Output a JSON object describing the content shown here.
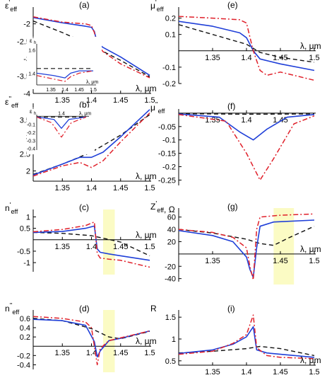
{
  "colors": {
    "blue": "#1f3fd8",
    "red": "#e0202a",
    "black": "#111111",
    "highlight": "#fbfbc4"
  },
  "chart_data": [
    {
      "id": "a",
      "panel_label": "(a)",
      "type": "line",
      "ylabel_main": "ε",
      "ylabel_sup": "'",
      "ylabel_sub": "eff",
      "xlabel": "λ, μm",
      "xlim": [
        1.3,
        1.5
      ],
      "ylim": [
        -4,
        -1.6
      ],
      "xaxis_at": -4,
      "yticks": [
        -2,
        -2.5,
        -3,
        -3.5,
        -4
      ],
      "xticks": [
        1.35,
        1.4,
        1.45,
        1.5
      ],
      "series": [
        {
          "color": "black",
          "dash": "dash",
          "x": [
            1.3,
            1.35,
            1.4,
            1.45,
            1.5
          ],
          "y": [
            -1.92,
            -2.25,
            -2.62,
            -3.05,
            -3.52
          ]
        },
        {
          "color": "blue",
          "dash": "solid",
          "x": [
            1.3,
            1.35,
            1.39,
            1.4,
            1.405,
            1.41,
            1.42,
            1.45,
            1.5
          ],
          "y": [
            -1.82,
            -1.97,
            -2.07,
            -2.1,
            -2.22,
            -2.55,
            -2.68,
            -2.95,
            -3.48
          ]
        },
        {
          "color": "red",
          "dash": "dashdot",
          "x": [
            1.3,
            1.35,
            1.39,
            1.4,
            1.405,
            1.41,
            1.42,
            1.45,
            1.5
          ],
          "y": [
            -1.8,
            -1.95,
            -2.0,
            -2.05,
            -2.25,
            -2.6,
            -2.8,
            -3.15,
            -3.55
          ]
        }
      ],
      "inset": {
        "ylabel_main": "ε",
        "ylabel_sup": "''",
        "ylabel_sub": "h",
        "xlabel": "λ, μm",
        "xlim": [
          1.3,
          1.5
        ],
        "ylim": [
          1.3,
          1.65
        ],
        "yticks": [
          1.6,
          1.4
        ],
        "xticks": [
          1.35,
          1.4,
          1.45,
          1.5
        ],
        "series": [
          {
            "color": "black",
            "dash": "dash",
            "x": [
              1.3,
              1.5
            ],
            "y": [
              1.44,
              1.44
            ]
          },
          {
            "color": "blue",
            "dash": "solid",
            "x": [
              1.3,
              1.36,
              1.4,
              1.42,
              1.45,
              1.5
            ],
            "y": [
              1.4,
              1.38,
              1.36,
              1.4,
              1.42,
              1.42
            ]
          },
          {
            "color": "red",
            "dash": "dashdot",
            "x": [
              1.3,
              1.36,
              1.4,
              1.42,
              1.45,
              1.5
            ],
            "y": [
              1.38,
              1.35,
              1.33,
              1.37,
              1.4,
              1.42
            ]
          }
        ]
      }
    },
    {
      "id": "e",
      "panel_label": "(e)",
      "type": "line",
      "ylabel_main": "μ",
      "ylabel_sup": "'",
      "ylabel_sub": "eff",
      "xlabel": "λ, μm",
      "xlim": [
        1.3,
        1.5
      ],
      "ylim": [
        -0.2,
        0.25
      ],
      "xaxis_at": 0,
      "yticks": [
        0.2,
        0.1,
        -0.1,
        -0.2
      ],
      "xticks": [
        1.35,
        1.4,
        1.45,
        1.5
      ],
      "series": [
        {
          "color": "black",
          "dash": "dash",
          "x": [
            1.3,
            1.35,
            1.4,
            1.42,
            1.45,
            1.5
          ],
          "y": [
            0.16,
            0.1,
            0.04,
            -0.01,
            -0.04,
            -0.07
          ]
        },
        {
          "color": "blue",
          "dash": "solid",
          "x": [
            1.3,
            1.35,
            1.39,
            1.4,
            1.41,
            1.42,
            1.45,
            1.5
          ],
          "y": [
            0.18,
            0.15,
            0.11,
            0.08,
            0.0,
            -0.05,
            -0.08,
            -0.12
          ]
        },
        {
          "color": "red",
          "dash": "dashdot",
          "x": [
            1.3,
            1.35,
            1.39,
            1.4,
            1.41,
            1.42,
            1.43,
            1.45,
            1.5
          ],
          "y": [
            0.21,
            0.2,
            0.19,
            0.17,
            0.0,
            -0.12,
            -0.15,
            -0.13,
            -0.18
          ]
        }
      ]
    },
    {
      "id": "b",
      "panel_label": "(b)",
      "type": "line",
      "ylabel_main": "ε",
      "ylabel_sup": "''",
      "ylabel_sub": "eff",
      "xlabel": "λ, μm",
      "xlim": [
        1.3,
        1.5
      ],
      "ylim": [
        1.7,
        3.9
      ],
      "xaxis_at": 1.7,
      "yticks": [
        3.5,
        3,
        2.5,
        2
      ],
      "xticks": [
        1.35,
        1.4,
        1.45,
        1.5
      ],
      "series": [
        {
          "color": "black",
          "dash": "dash",
          "x": [
            1.3,
            1.35,
            1.4,
            1.45,
            1.5
          ],
          "y": [
            1.9,
            2.2,
            2.55,
            3.05,
            3.65
          ]
        },
        {
          "color": "blue",
          "dash": "solid",
          "x": [
            1.3,
            1.35,
            1.38,
            1.4,
            1.42,
            1.45,
            1.5
          ],
          "y": [
            1.88,
            2.2,
            2.4,
            2.4,
            2.55,
            3.0,
            3.8
          ]
        },
        {
          "color": "red",
          "dash": "dashdot",
          "x": [
            1.3,
            1.35,
            1.38,
            1.4,
            1.42,
            1.45,
            1.5
          ],
          "y": [
            1.85,
            2.15,
            2.25,
            2.1,
            2.3,
            2.85,
            3.7
          ]
        }
      ],
      "inset": {
        "ylabel_main": "ε",
        "ylabel_sup": "''",
        "ylabel_sub": "h",
        "xlabel": "λ, μm",
        "xlim": [
          1.3,
          1.5
        ],
        "ylim": [
          -0.42,
          0.02
        ],
        "yticks": [
          -0.1,
          -0.2,
          -0.3,
          -0.4
        ],
        "xticks": [
          1.4
        ],
        "series": [
          {
            "color": "black",
            "dash": "dash",
            "x": [
              1.3,
              1.5
            ],
            "y": [
              -0.01,
              -0.01
            ]
          },
          {
            "color": "blue",
            "dash": "solid",
            "x": [
              1.3,
              1.37,
              1.4,
              1.43,
              1.5
            ],
            "y": [
              -0.01,
              -0.04,
              -0.15,
              -0.04,
              -0.01
            ]
          },
          {
            "color": "red",
            "dash": "dashdot",
            "x": [
              1.3,
              1.36,
              1.4,
              1.44,
              1.5
            ],
            "y": [
              -0.01,
              -0.08,
              -0.26,
              -0.08,
              -0.01
            ]
          }
        ]
      }
    },
    {
      "id": "f",
      "panel_label": "(f)",
      "type": "line",
      "ylabel_main": "μ",
      "ylabel_sup": "''",
      "ylabel_sub": "eff",
      "xlabel": "",
      "xlim": [
        1.3,
        1.5
      ],
      "ylim": [
        -0.27,
        0.005
      ],
      "xaxis_at": 0,
      "yticks": [
        -0.05,
        -0.1,
        -0.15,
        -0.2,
        -0.25
      ],
      "xticks": [
        1.35,
        1.4,
        1.45
      ],
      "series": [
        {
          "color": "black",
          "dash": "dash",
          "x": [
            1.3,
            1.4,
            1.5
          ],
          "y": [
            -0.002,
            -0.004,
            -0.003
          ]
        },
        {
          "color": "blue",
          "dash": "solid",
          "x": [
            1.3,
            1.36,
            1.39,
            1.41,
            1.43,
            1.46,
            1.5
          ],
          "y": [
            -0.003,
            -0.015,
            -0.07,
            -0.1,
            -0.06,
            -0.015,
            -0.005
          ]
        },
        {
          "color": "red",
          "dash": "dashdot",
          "x": [
            1.3,
            1.37,
            1.4,
            1.42,
            1.44,
            1.47,
            1.5
          ],
          "y": [
            -0.005,
            -0.03,
            -0.15,
            -0.25,
            -0.17,
            -0.04,
            -0.01
          ]
        }
      ]
    },
    {
      "id": "c",
      "panel_label": "(c)",
      "type": "line",
      "ylabel_main": "n",
      "ylabel_sup": "'",
      "ylabel_sub": "eff",
      "xlabel": "λ, μm",
      "xlim": [
        1.3,
        1.5
      ],
      "ylim": [
        -1.4,
        1.2
      ],
      "xaxis_at": 0,
      "yticks": [
        1,
        0.5,
        -0.5,
        -1
      ],
      "xticks": [
        1.35,
        1.4,
        1.45,
        1.5
      ],
      "highlight": [
        1.42,
        1.44
      ],
      "series": [
        {
          "color": "black",
          "dash": "dash",
          "x": [
            1.3,
            1.35,
            1.4,
            1.45,
            1.5
          ],
          "y": [
            0.32,
            0.28,
            0.18,
            -0.1,
            -0.7
          ]
        },
        {
          "color": "blue",
          "dash": "solid",
          "x": [
            1.3,
            1.35,
            1.39,
            1.405,
            1.41,
            1.415,
            1.43,
            1.45,
            1.5
          ],
          "y": [
            0.32,
            0.36,
            0.5,
            0.6,
            -0.4,
            -0.55,
            -0.62,
            -0.7,
            -0.9
          ]
        },
        {
          "color": "red",
          "dash": "dashdot",
          "x": [
            1.3,
            1.35,
            1.39,
            1.405,
            1.41,
            1.415,
            1.43,
            1.45,
            1.5
          ],
          "y": [
            0.35,
            0.45,
            0.62,
            0.78,
            -0.6,
            -0.8,
            -0.85,
            -0.9,
            -1.2
          ]
        }
      ]
    },
    {
      "id": "g",
      "panel_label": "(g)",
      "type": "line",
      "ylabel_main": "Z",
      "ylabel_sup": "'",
      "ylabel_sub": "eff",
      "ylabel_tail": ", Ω",
      "xlabel": "λ, μm",
      "xlim": [
        1.3,
        1.5
      ],
      "ylim": [
        -45,
        70
      ],
      "xaxis_at": 0,
      "yticks": [
        60,
        40,
        20,
        -20,
        -40
      ],
      "xticks": [
        1.35,
        1.45,
        1.5
      ],
      "highlight": [
        1.44,
        1.47
      ],
      "series": [
        {
          "color": "black",
          "dash": "dash",
          "x": [
            1.3,
            1.35,
            1.4,
            1.42,
            1.44,
            1.46,
            1.5
          ],
          "y": [
            40,
            34,
            24,
            17,
            14,
            25,
            45
          ]
        },
        {
          "color": "blue",
          "dash": "solid",
          "x": [
            1.3,
            1.35,
            1.38,
            1.4,
            1.405,
            1.41,
            1.415,
            1.42,
            1.44,
            1.5
          ],
          "y": [
            38,
            30,
            20,
            -5,
            -25,
            -38,
            10,
            45,
            52,
            55
          ]
        },
        {
          "color": "red",
          "dash": "dashdot",
          "x": [
            1.3,
            1.35,
            1.38,
            1.4,
            1.405,
            1.41,
            1.415,
            1.42,
            1.45,
            1.5
          ],
          "y": [
            40,
            35,
            27,
            10,
            -20,
            -42,
            40,
            60,
            63,
            65
          ]
        }
      ]
    },
    {
      "id": "d",
      "panel_label": "(d)",
      "type": "line",
      "ylabel_main": "n",
      "ylabel_sup": "''",
      "ylabel_sub": "eff",
      "xlabel": "λ, μm",
      "xlim": [
        1.3,
        1.5
      ],
      "ylim": [
        -0.5,
        0.72
      ],
      "xaxis_at": 0,
      "yticks": [
        0.6,
        0.4,
        0.2,
        -0.2,
        -0.4
      ],
      "xticks": [
        1.35,
        1.4,
        1.45,
        1.5
      ],
      "highlight": [
        1.42,
        1.44
      ],
      "series": [
        {
          "color": "black",
          "dash": "dash",
          "x": [
            1.3,
            1.35,
            1.4,
            1.43,
            1.45,
            1.5
          ],
          "y": [
            0.6,
            0.55,
            0.38,
            0.2,
            0.16,
            0.32
          ]
        },
        {
          "color": "blue",
          "dash": "solid",
          "x": [
            1.3,
            1.35,
            1.39,
            1.405,
            1.41,
            1.415,
            1.43,
            1.45,
            1.5
          ],
          "y": [
            0.58,
            0.55,
            0.45,
            0.1,
            -0.23,
            -0.1,
            0.12,
            0.17,
            0.33
          ]
        },
        {
          "color": "red",
          "dash": "dashdot",
          "x": [
            1.3,
            1.35,
            1.39,
            1.4,
            1.41,
            1.415,
            1.43,
            1.45,
            1.5
          ],
          "y": [
            0.64,
            0.6,
            0.52,
            0.4,
            -0.4,
            -0.05,
            0.12,
            0.18,
            0.33
          ]
        }
      ]
    },
    {
      "id": "i",
      "panel_label": "(i)",
      "type": "line",
      "ylabel_main": "R",
      "ylabel_sup": "",
      "ylabel_sub": "",
      "xlabel": "λ, μm",
      "xlim": [
        1.3,
        1.5
      ],
      "ylim": [
        0.4,
        1.6
      ],
      "xaxis_at": 0.4,
      "yticks": [
        1.5,
        1,
        0.5
      ],
      "xticks": [
        1.35,
        1.4,
        1.45,
        1.5
      ],
      "series": [
        {
          "color": "black",
          "dash": "dash",
          "x": [
            1.3,
            1.35,
            1.4,
            1.42,
            1.45,
            1.5
          ],
          "y": [
            0.68,
            0.72,
            0.78,
            0.83,
            0.78,
            0.62
          ]
        },
        {
          "color": "blue",
          "dash": "solid",
          "x": [
            1.3,
            1.35,
            1.38,
            1.4,
            1.41,
            1.415,
            1.43,
            1.45,
            1.5
          ],
          "y": [
            0.67,
            0.75,
            0.88,
            1.05,
            1.28,
            0.75,
            0.68,
            0.65,
            0.58
          ]
        },
        {
          "color": "red",
          "dash": "dashdot",
          "x": [
            1.3,
            1.35,
            1.38,
            1.4,
            1.41,
            1.415,
            1.43,
            1.45,
            1.5
          ],
          "y": [
            0.65,
            0.72,
            0.9,
            1.1,
            1.55,
            0.8,
            0.62,
            0.58,
            0.55
          ]
        }
      ]
    }
  ]
}
